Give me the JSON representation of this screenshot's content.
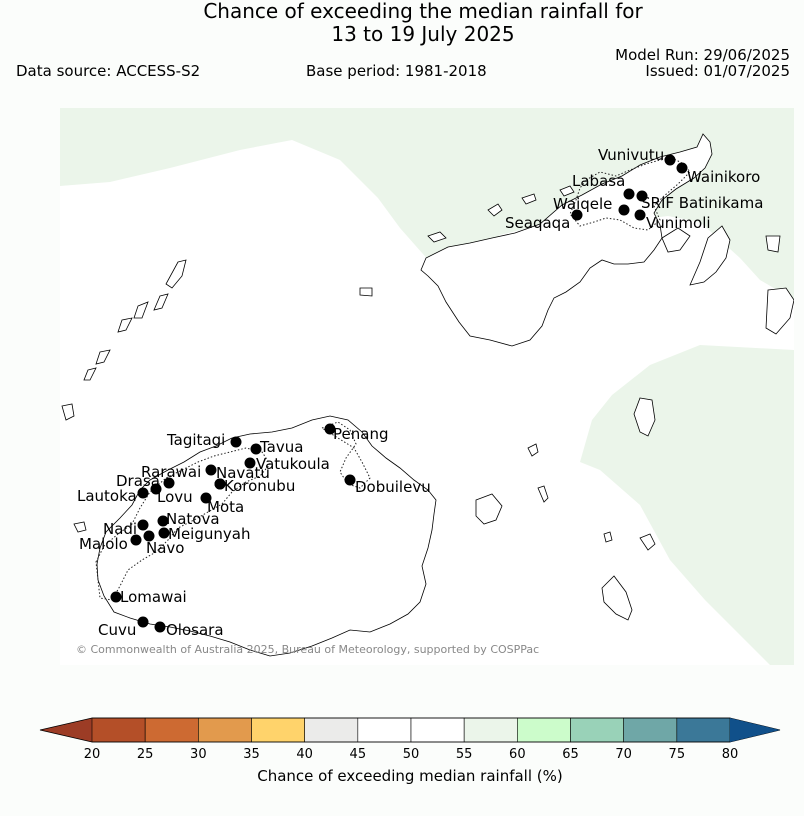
{
  "header": {
    "title_line1": "Chance of exceeding the median rainfall for",
    "title_line2": "13 to 19 July 2025",
    "model_run": "Model Run: 29/06/2025",
    "issued": "Issued: 01/07/2025",
    "data_source": "Data source: ACCESS-S2",
    "base_period": "Base period: 1981-2018"
  },
  "map": {
    "copyright": "© Commonwealth of Australia 2025, Bureau of Meteorology, supported by COSPPac",
    "stations": [
      {
        "name": "Vunivutu"
      },
      {
        "name": "Wainikoro"
      },
      {
        "name": "Labasa"
      },
      {
        "name": "Waiqele"
      },
      {
        "name": "SRIF Batinikama"
      },
      {
        "name": "Seaqaqa"
      },
      {
        "name": "Vunimoli"
      },
      {
        "name": "Tagitagi"
      },
      {
        "name": "Tavua"
      },
      {
        "name": "Penang"
      },
      {
        "name": "Vatukoula"
      },
      {
        "name": "Rarawai"
      },
      {
        "name": "Navatu"
      },
      {
        "name": "Drasa"
      },
      {
        "name": "Koronubu"
      },
      {
        "name": "Dobuilevu"
      },
      {
        "name": "Lautoka"
      },
      {
        "name": "Lovu"
      },
      {
        "name": "Mota"
      },
      {
        "name": "Natova"
      },
      {
        "name": "Nadi"
      },
      {
        "name": "Meigunyah"
      },
      {
        "name": "Malolo"
      },
      {
        "name": "Navo"
      },
      {
        "name": "Lomawai"
      },
      {
        "name": "Cuvu"
      },
      {
        "name": "Olosara"
      }
    ]
  },
  "colorbar": {
    "label": "Chance of exceeding median rainfall (%)",
    "ticks": [
      "20",
      "25",
      "30",
      "35",
      "40",
      "45",
      "50",
      "55",
      "60",
      "65",
      "70",
      "75",
      "80"
    ],
    "colors": [
      "#b44f28",
      "#cd6a32",
      "#e29a4d",
      "#ffd36b",
      "#ebebea",
      "#ffffff",
      "#ffffff",
      "#ebf5ea",
      "#ccfccb",
      "#99d2b8",
      "#6fa7a7",
      "#3b7898"
    ],
    "under_color": "#9c3c25",
    "over_color": "#10508a"
  },
  "colors": {
    "background": "#fbfdfb",
    "land_fill": "#ffffff",
    "above_median_shade": "#ebf5ea",
    "station_marker": "#000000"
  }
}
